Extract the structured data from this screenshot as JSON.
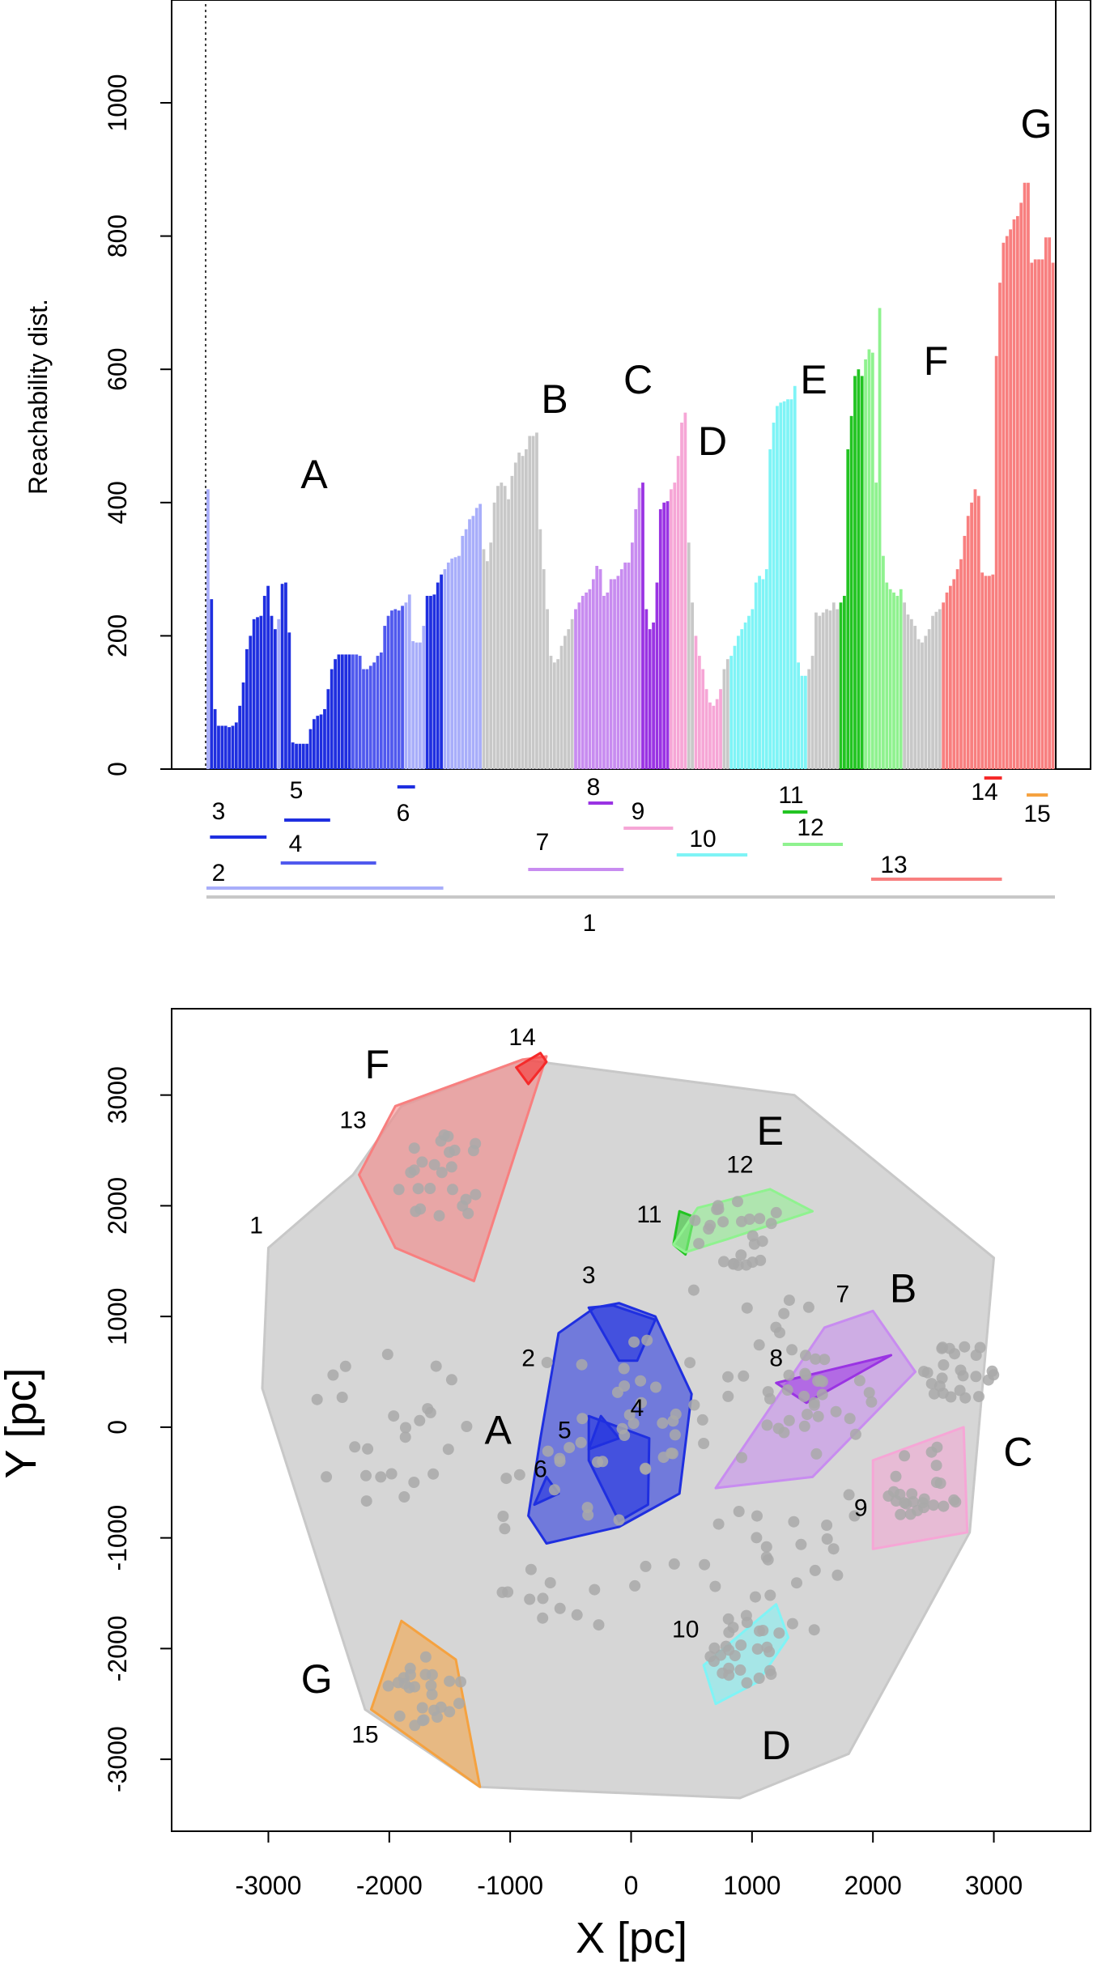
{
  "colors": {
    "grey": "#c8c8c8",
    "blue": "#1f2fe0",
    "lightblue": "#a8aefa",
    "midblue": "#5059ee",
    "purple": "#c88cf0",
    "darkpurple": "#9a33e3",
    "pink": "#f6a6d6",
    "cyan": "#7ff4f6",
    "green": "#22c422",
    "lightgreen": "#8ff28f",
    "salmon": "#f87f7f",
    "red": "#f52a2a",
    "orange": "#f5a240"
  },
  "chart_data": [
    {
      "type": "bar",
      "title": "",
      "xlabel": "",
      "ylabel": "Reachability dist.",
      "ylim": [
        0,
        1130
      ],
      "yticks": [
        "0",
        "200",
        "400",
        "600",
        "800",
        "1000"
      ],
      "n_points": 240,
      "series": [
        {
          "name": "reachability",
          "values": [
            420,
            255,
            90,
            65,
            65,
            65,
            63,
            65,
            70,
            95,
            130,
            180,
            200,
            225,
            228,
            230,
            260,
            275,
            230,
            210,
            225,
            278,
            280,
            205,
            40,
            38,
            38,
            38,
            38,
            60,
            75,
            80,
            82,
            90,
            120,
            150,
            165,
            172,
            172,
            172,
            172,
            172,
            172,
            170,
            150,
            150,
            155,
            160,
            170,
            175,
            215,
            230,
            238,
            240,
            238,
            245,
            250,
            262,
            192,
            190,
            190,
            215,
            260,
            260,
            262,
            280,
            292,
            300,
            310,
            316,
            318,
            320,
            350,
            360,
            375,
            380,
            392,
            398,
            330,
            312,
            340,
            400,
            425,
            430,
            425,
            405,
            440,
            460,
            475,
            470,
            480,
            500,
            500,
            505,
            360,
            300,
            240,
            170,
            160,
            165,
            185,
            200,
            210,
            225,
            240,
            250,
            260,
            265,
            270,
            285,
            305,
            300,
            260,
            265,
            285,
            285,
            290,
            300,
            310,
            310,
            340,
            390,
            422,
            430,
            240,
            210,
            220,
            280,
            390,
            400,
            402,
            420,
            430,
            470,
            520,
            535,
            340,
            250,
            200,
            170,
            150,
            120,
            100,
            95,
            105,
            120,
            150,
            165,
            170,
            185,
            200,
            210,
            220,
            230,
            240,
            280,
            290,
            285,
            300,
            480,
            520,
            545,
            550,
            552,
            555,
            555,
            575,
            160,
            140,
            140,
            150,
            170,
            235,
            230,
            235,
            240,
            238,
            250,
            240,
            250,
            260,
            480,
            530,
            590,
            600,
            590,
            615,
            630,
            625,
            430,
            692,
            320,
            280,
            270,
            265,
            260,
            270,
            250,
            232,
            225,
            215,
            195,
            190,
            200,
            210,
            230,
            236,
            240,
            250,
            265,
            275,
            285,
            300,
            315,
            350,
            380,
            400,
            420,
            410,
            295,
            290,
            290,
            292,
            620,
            730,
            790,
            800,
            810,
            825,
            830,
            850,
            880,
            880,
            760,
            765,
            765,
            765,
            798,
            798,
            760
          ]
        },
        {
          "name": "bar-color-ranges",
          "values": [
            [
              "lightblue",
              0,
              1
            ],
            [
              "blue",
              1,
              20
            ],
            [
              "lightblue",
              20,
              21
            ],
            [
              "blue",
              21,
              41
            ],
            [
              "midblue",
              41,
              56
            ],
            [
              "lightblue",
              56,
              62
            ],
            [
              "blue",
              62,
              67
            ],
            [
              "lightblue",
              67,
              78
            ],
            [
              "grey",
              78,
              104
            ],
            [
              "purple",
              104,
              123
            ],
            [
              "darkpurple",
              123,
              131
            ],
            [
              "pink",
              131,
              136
            ],
            [
              "grey",
              136,
              138
            ],
            [
              "pink",
              138,
              146
            ],
            [
              "grey",
              146,
              148
            ],
            [
              "cyan",
              148,
              170
            ],
            [
              "grey",
              170,
              179
            ],
            [
              "green",
              179,
              186
            ],
            [
              "lightgreen",
              186,
              197
            ],
            [
              "grey",
              197,
              208
            ],
            [
              "salmon",
              208,
              255
            ],
            [
              "red",
              255,
              260
            ],
            [
              "grey",
              260,
              270
            ],
            [
              "orange",
              270,
              276
            ],
            [
              "grey",
              276,
              280
            ]
          ]
        }
      ],
      "cluster_labels": [
        "A",
        "B",
        "C",
        "D",
        "E",
        "F",
        "G"
      ],
      "hierarchy_levels": [
        {
          "id": "1",
          "range": [
            0,
            240
          ],
          "color": "grey"
        },
        {
          "id": "2",
          "range": [
            0,
            67
          ],
          "color": "lightblue"
        },
        {
          "id": "3",
          "range": [
            1,
            17
          ],
          "color": "blue"
        },
        {
          "id": "4",
          "range": [
            21,
            48
          ],
          "color": "midblue"
        },
        {
          "id": "5",
          "range": [
            22,
            35
          ],
          "color": "blue"
        },
        {
          "id": "6",
          "range": [
            54,
            59
          ],
          "color": "blue"
        },
        {
          "id": "7",
          "range": [
            91,
            118
          ],
          "color": "purple"
        },
        {
          "id": "8",
          "range": [
            108,
            115
          ],
          "color": "darkpurple"
        },
        {
          "id": "9",
          "range": [
            118,
            132
          ],
          "color": "pink"
        },
        {
          "id": "10",
          "range": [
            133,
            153
          ],
          "color": "cyan"
        },
        {
          "id": "11",
          "range": [
            163,
            170
          ],
          "color": "green"
        },
        {
          "id": "12",
          "range": [
            163,
            180
          ],
          "color": "lightgreen"
        },
        {
          "id": "13",
          "range": [
            188,
            225
          ],
          "color": "salmon"
        },
        {
          "id": "14",
          "range": [
            220,
            225
          ],
          "color": "red"
        },
        {
          "id": "15",
          "range": [
            232,
            238
          ],
          "color": "orange"
        }
      ]
    },
    {
      "type": "scatter",
      "title": "",
      "xlabel": "X [pc]",
      "ylabel": "Y [pc]",
      "xlim": [
        -3800,
        3800
      ],
      "ylim": [
        -3650,
        3780
      ],
      "xticks": [
        "-3000",
        "-2000",
        "-1000",
        "0",
        "1000",
        "2000",
        "3000"
      ],
      "yticks": [
        "-3000",
        "-2000",
        "-1000",
        "0",
        "1000",
        "2000",
        "3000"
      ],
      "hulls": [
        {
          "id": "1",
          "color": "grey",
          "points": [
            [
              -3000,
              1620
            ],
            [
              -2300,
              2280
            ],
            [
              -1900,
              2900
            ],
            [
              -900,
              3320
            ],
            [
              1350,
              3000
            ],
            [
              3000,
              1530
            ],
            [
              2800,
              -950
            ],
            [
              1800,
              -2950
            ],
            [
              900,
              -3350
            ],
            [
              -1250,
              -3250
            ],
            [
              -2200,
              -2550
            ],
            [
              -3050,
              350
            ]
          ]
        },
        {
          "id": "2",
          "color": "blue",
          "points": [
            [
              -600,
              850
            ],
            [
              -300,
              1080
            ],
            [
              -100,
              1120
            ],
            [
              200,
              1000
            ],
            [
              500,
              300
            ],
            [
              400,
              -600
            ],
            [
              -100,
              -900
            ],
            [
              -700,
              -1050
            ],
            [
              -850,
              -800
            ],
            [
              -750,
              -100
            ]
          ]
        },
        {
          "id": "3",
          "color": "blue",
          "points": [
            [
              -350,
              1080
            ],
            [
              -150,
              1100
            ],
            [
              200,
              970
            ],
            [
              50,
              600
            ],
            [
              -100,
              600
            ]
          ]
        },
        {
          "id": "4",
          "color": "blue",
          "points": [
            [
              -350,
              100
            ],
            [
              150,
              -100
            ],
            [
              140,
              -700
            ],
            [
              -100,
              -850
            ],
            [
              -350,
              -300
            ]
          ]
        },
        {
          "id": "5",
          "color": "blue",
          "points": [
            [
              -350,
              -200
            ],
            [
              -250,
              100
            ],
            [
              -100,
              -100
            ]
          ]
        },
        {
          "id": "6",
          "color": "blue",
          "points": [
            [
              -800,
              -700
            ],
            [
              -700,
              -450
            ],
            [
              -600,
              -600
            ]
          ]
        },
        {
          "id": "7",
          "color": "purple",
          "points": [
            [
              1600,
              900
            ],
            [
              2000,
              1050
            ],
            [
              2350,
              500
            ],
            [
              1500,
              -450
            ],
            [
              700,
              -550
            ]
          ]
        },
        {
          "id": "8",
          "color": "darkpurple",
          "points": [
            [
              1200,
              400
            ],
            [
              2150,
              650
            ],
            [
              1450,
              220
            ]
          ]
        },
        {
          "id": "9",
          "color": "pink",
          "points": [
            [
              2000,
              -800
            ],
            [
              2000,
              -300
            ],
            [
              2750,
              0
            ],
            [
              2780,
              -950
            ],
            [
              2000,
              -1100
            ]
          ]
        },
        {
          "id": "10",
          "color": "cyan",
          "points": [
            [
              600,
              -2150
            ],
            [
              1200,
              -1600
            ],
            [
              1300,
              -1900
            ],
            [
              1050,
              -2300
            ],
            [
              700,
              -2500
            ]
          ]
        },
        {
          "id": "11",
          "color": "green",
          "points": [
            [
              350,
              1650
            ],
            [
              400,
              1950
            ],
            [
              520,
              1900
            ],
            [
              450,
              1560
            ]
          ]
        },
        {
          "id": "12",
          "color": "lightgreen",
          "points": [
            [
              350,
              1650
            ],
            [
              550,
              1980
            ],
            [
              1150,
              2150
            ],
            [
              1500,
              1950
            ],
            [
              800,
              1700
            ],
            [
              450,
              1580
            ]
          ]
        },
        {
          "id": "13",
          "color": "salmon",
          "points": [
            [
              -2250,
              2280
            ],
            [
              -1950,
              2900
            ],
            [
              -900,
              3320
            ],
            [
              -700,
              3350
            ],
            [
              -1300,
              1320
            ],
            [
              -1950,
              1620
            ]
          ]
        },
        {
          "id": "14",
          "color": "red",
          "points": [
            [
              -950,
              3250
            ],
            [
              -750,
              3380
            ],
            [
              -700,
              3300
            ],
            [
              -850,
              3100
            ]
          ]
        },
        {
          "id": "15",
          "color": "orange",
          "points": [
            [
              -2150,
              -2550
            ],
            [
              -1900,
              -1750
            ],
            [
              -1450,
              -2100
            ],
            [
              -1250,
              -3250
            ]
          ]
        }
      ],
      "cluster_labels": [
        {
          "label": "A",
          "x": -1100,
          "y": -150
        },
        {
          "label": "B",
          "x": 2250,
          "y": 1130
        },
        {
          "label": "C",
          "x": 3200,
          "y": -350
        },
        {
          "label": "D",
          "x": 1200,
          "y": -3000
        },
        {
          "label": "E",
          "x": 1150,
          "y": 2550
        },
        {
          "label": "F",
          "x": -2100,
          "y": 3150
        },
        {
          "label": "G",
          "x": -2600,
          "y": -2400
        }
      ],
      "hull_labels": [
        {
          "label": "1",
          "x": -3100,
          "y": 1750
        },
        {
          "label": "2",
          "x": -850,
          "y": 550
        },
        {
          "label": "3",
          "x": -350,
          "y": 1300
        },
        {
          "label": "4",
          "x": 50,
          "y": 100
        },
        {
          "label": "5",
          "x": -550,
          "y": -100
        },
        {
          "label": "6",
          "x": -750,
          "y": -450
        },
        {
          "label": "7",
          "x": 1750,
          "y": 1130
        },
        {
          "label": "8",
          "x": 1200,
          "y": 550
        },
        {
          "label": "9",
          "x": 1900,
          "y": -800
        },
        {
          "label": "10",
          "x": 450,
          "y": -1900
        },
        {
          "label": "11",
          "x": 150,
          "y": 1850
        },
        {
          "label": "12",
          "x": 900,
          "y": 2300
        },
        {
          "label": "13",
          "x": -2300,
          "y": 2700
        },
        {
          "label": "14",
          "x": -900,
          "y": 3450
        },
        {
          "label": "15",
          "x": -2200,
          "y": -2850
        }
      ],
      "point_count": 300
    }
  ]
}
